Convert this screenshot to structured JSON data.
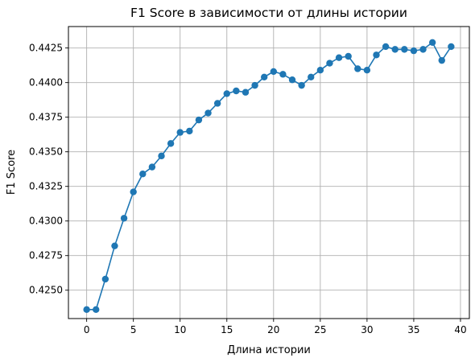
{
  "chart_data": {
    "type": "line",
    "title": "F1 Score в зависимости от длины истории",
    "xlabel": "Длина истории",
    "ylabel": "F1 Score",
    "xlim": [
      -1.95,
      40.95
    ],
    "ylim": [
      0.42295,
      0.44405
    ],
    "xticks": [
      0,
      5,
      10,
      15,
      20,
      25,
      30,
      35,
      40
    ],
    "xtick_labels": [
      "0",
      "5",
      "10",
      "15",
      "20",
      "25",
      "30",
      "35",
      "40"
    ],
    "yticks": [
      0.425,
      0.4275,
      0.43,
      0.4325,
      0.435,
      0.4375,
      0.44,
      0.4425
    ],
    "ytick_labels": [
      "0.4250",
      "0.4275",
      "0.4300",
      "0.4325",
      "0.4350",
      "0.4375",
      "0.4400",
      "0.4425"
    ],
    "grid": true,
    "marker": "circle",
    "color": "#1f77b4",
    "series": [
      {
        "x": [
          0,
          1,
          2,
          3,
          4,
          5,
          6,
          7,
          8,
          9,
          10,
          11,
          12,
          13,
          14,
          15,
          16,
          17,
          18,
          19,
          20,
          21,
          22,
          23,
          24,
          25,
          26,
          27,
          28,
          29,
          30,
          31,
          32,
          33,
          34,
          35,
          36,
          37,
          38,
          39
        ],
        "values": [
          0.4236,
          0.4236,
          0.4258,
          0.4282,
          0.4302,
          0.4321,
          0.4334,
          0.4339,
          0.4347,
          0.4356,
          0.4364,
          0.4365,
          0.4373,
          0.4378,
          0.4385,
          0.4392,
          0.4394,
          0.4393,
          0.4398,
          0.4404,
          0.4408,
          0.4406,
          0.4402,
          0.4398,
          0.4404,
          0.4409,
          0.4414,
          0.4418,
          0.4419,
          0.441,
          0.4409,
          0.442,
          0.4426,
          0.4424,
          0.4424,
          0.4423,
          0.4424,
          0.4429,
          0.4416,
          0.4426
        ]
      }
    ]
  }
}
